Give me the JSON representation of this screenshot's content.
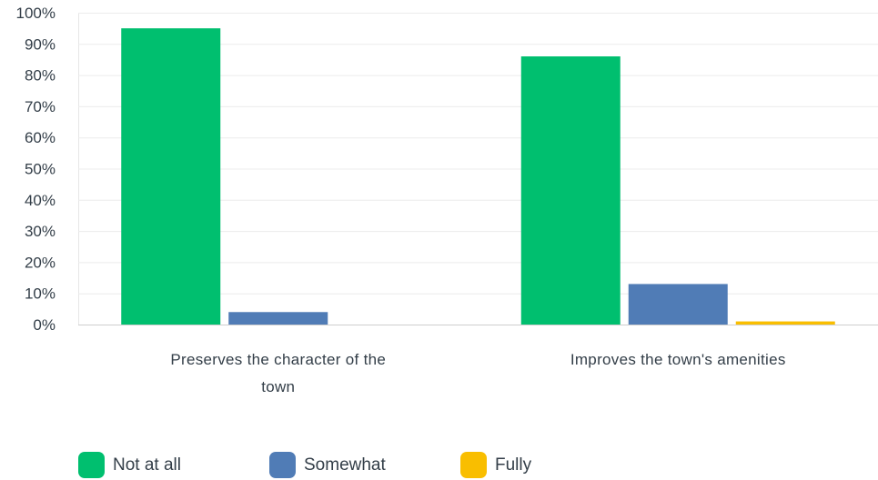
{
  "chart_data": {
    "type": "bar",
    "categories": [
      [
        "Preserves the character of the",
        "town"
      ],
      [
        "Improves the town's amenities"
      ]
    ],
    "series": [
      {
        "name": "Not at all",
        "color": "#00bf6f",
        "values": [
          95,
          86
        ]
      },
      {
        "name": "Somewhat",
        "color": "#507cb6",
        "values": [
          4,
          13
        ]
      },
      {
        "name": "Fully",
        "color": "#f9be00",
        "values": [
          0,
          1
        ]
      }
    ],
    "y_ticks": [
      "0%",
      "10%",
      "20%",
      "30%",
      "40%",
      "50%",
      "60%",
      "70%",
      "80%",
      "90%",
      "100%"
    ],
    "ylim": [
      0,
      100
    ],
    "grid": true,
    "legend_position": "bottom-left"
  },
  "legend": {
    "items": [
      {
        "label": "Not at all",
        "color": "#00bf6f"
      },
      {
        "label": "Somewhat",
        "color": "#507cb6"
      },
      {
        "label": "Fully",
        "color": "#f9be00"
      }
    ]
  }
}
